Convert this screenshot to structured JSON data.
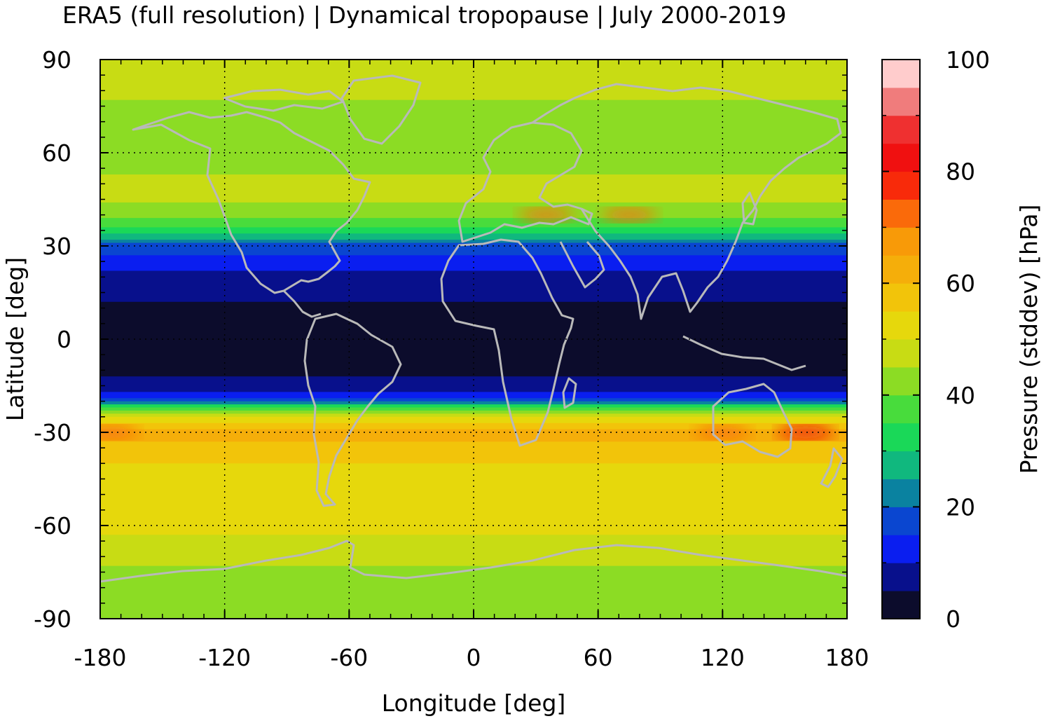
{
  "title": "ERA5 (full resolution) | Dynamical tropopause | July 2000-2019",
  "chart_data": {
    "type": "heatmap",
    "title": "ERA5 (full resolution) | Dynamical tropopause | July 2000-2019",
    "xlabel": "Longitude [deg]",
    "ylabel": "Latitude [deg]",
    "xlim": [
      -180,
      180
    ],
    "ylim": [
      -90,
      90
    ],
    "x_ticks": [
      "-180",
      "-120",
      "-60",
      "0",
      "60",
      "120",
      "180"
    ],
    "y_ticks": [
      "90",
      "60",
      "30",
      "0",
      "-30",
      "-60",
      "-90"
    ],
    "grid": true,
    "colorbar": {
      "label": "Pressure (stddev) [hPa]",
      "range": [
        0,
        100
      ],
      "ticks": [
        "100",
        "80",
        "60",
        "40",
        "20",
        "0"
      ],
      "levels": [
        0,
        5,
        10,
        15,
        20,
        25,
        30,
        35,
        40,
        45,
        50,
        55,
        60,
        65,
        70,
        75,
        80,
        85,
        90,
        95,
        100
      ],
      "colors": [
        "#0c0c2c",
        "#08108c",
        "#0a1ef0",
        "#0a46d0",
        "#0a82a0",
        "#10b87e",
        "#1ad858",
        "#48dc3c",
        "#8cdc24",
        "#c8dc14",
        "#e6d80c",
        "#f2c40a",
        "#f5ae0a",
        "#f89a08",
        "#fa6a0a",
        "#f82a0a",
        "#f01010",
        "#ef3030",
        "#f07c7c",
        "#ffcccc"
      ]
    },
    "zonal_profile_lat": [
      90,
      80,
      70,
      60,
      50,
      45,
      40,
      35,
      30,
      25,
      20,
      15,
      10,
      5,
      0,
      -5,
      -10,
      -15,
      -18,
      -20,
      -23,
      -25,
      -28,
      -30,
      -33,
      -36,
      -40,
      -50,
      -60,
      -70,
      -80,
      -90
    ],
    "zonal_profile_value": [
      45,
      46,
      43,
      41,
      47,
      46,
      42,
      34,
      18,
      12,
      8,
      6,
      4,
      3,
      2,
      2,
      4,
      7,
      12,
      22,
      38,
      50,
      58,
      64,
      60,
      57,
      55,
      54,
      52,
      46,
      43,
      41
    ],
    "hotspots": [
      {
        "lon": 35,
        "lat": 40,
        "value": 72
      },
      {
        "lon": 75,
        "lat": 40,
        "value": 70
      },
      {
        "lon": 120,
        "lat": -30,
        "value": 72
      },
      {
        "lon": 160,
        "lat": -30,
        "value": 82
      },
      {
        "lon": -175,
        "lat": -30,
        "value": 74
      }
    ],
    "map_overlay": "coastlines"
  }
}
